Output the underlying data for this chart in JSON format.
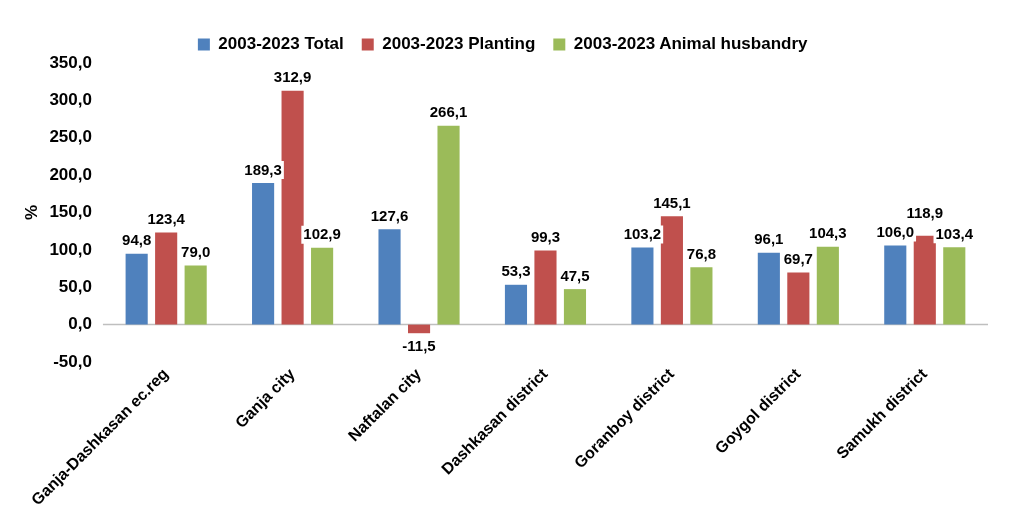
{
  "chart_data": {
    "type": "bar",
    "ylabel": "%",
    "categories": [
      "Ganja-Dashkasan ec.reg",
      "Ganja city",
      "Naftalan city",
      "Dashkasan district",
      "Goranboy district",
      "Goygol district",
      "Samukh district"
    ],
    "series": [
      {
        "name": "2003-2023 Total",
        "color": "#4f81bd",
        "values": [
          94.8,
          189.3,
          127.6,
          53.3,
          103.2,
          96.1,
          106.0
        ],
        "value_labels": [
          "94,8",
          "189,3",
          "127,6",
          "53,3",
          "103,2",
          "96,1",
          "106,0"
        ]
      },
      {
        "name": "2003-2023 Planting",
        "color": "#c0504d",
        "values": [
          123.4,
          312.9,
          -11.5,
          99.3,
          145.1,
          69.7,
          118.9
        ],
        "value_labels": [
          "123,4",
          "312,9",
          "-11,5",
          "99,3",
          "145,1",
          "69,7",
          "118,9"
        ]
      },
      {
        "name": "2003-2023 Animal husbandry",
        "color": "#9bbb59",
        "values": [
          79.0,
          102.9,
          266.1,
          47.5,
          76.8,
          104.3,
          103.4
        ],
        "value_labels": [
          "79,0",
          "102,9",
          "266,1",
          "47,5",
          "76,8",
          "104,3",
          "103,4"
        ]
      }
    ],
    "ylim": [
      -50,
      350
    ],
    "yticks": [
      {
        "value": -50,
        "label": "-50,0"
      },
      {
        "value": 0,
        "label": "0,0"
      },
      {
        "value": 50,
        "label": "50,0"
      },
      {
        "value": 100,
        "label": "100,0"
      },
      {
        "value": 150,
        "label": "150,0"
      },
      {
        "value": 200,
        "label": "200,0"
      },
      {
        "value": 250,
        "label": "250,0"
      },
      {
        "value": 300,
        "label": "300,0"
      },
      {
        "value": 350,
        "label": "350,0"
      }
    ],
    "legend": "top"
  }
}
